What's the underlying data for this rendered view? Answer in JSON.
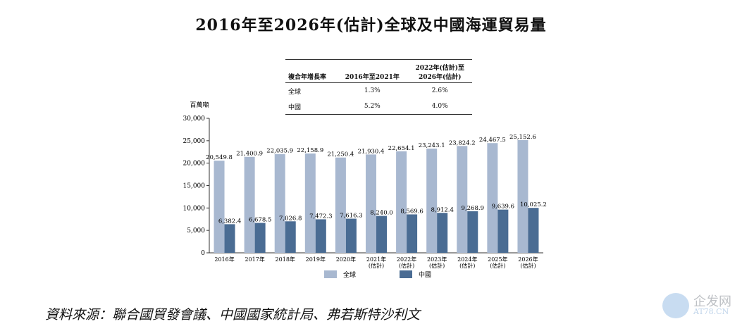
{
  "title": "2016年至2026年(估計)全球及中國海運貿易量",
  "cagr_table": {
    "headers": [
      "複合年增長率",
      "2016年至2021年",
      "2022年(估計)至\n2026年(估計)"
    ],
    "rows": [
      {
        "label": "全球",
        "v1": "1.3%",
        "v2": "2.6%"
      },
      {
        "label": "中國",
        "v1": "5.2%",
        "v2": "4.0%"
      }
    ]
  },
  "chart_data": {
    "type": "bar",
    "title": "2016年至2026年(估計)全球及中國海運貿易量",
    "ylabel": "百萬噸",
    "ylim": [
      0,
      30000
    ],
    "yticks": [
      "0",
      "5,000",
      "10,000",
      "15,000",
      "20,000",
      "25,000",
      "30,000"
    ],
    "categories": [
      [
        "2016年"
      ],
      [
        "2017年"
      ],
      [
        "2018年"
      ],
      [
        "2019年"
      ],
      [
        "2020年"
      ],
      [
        "2021年",
        "(估計)"
      ],
      [
        "2022年",
        "(估計)"
      ],
      [
        "2023年",
        "(估計)"
      ],
      [
        "2024年",
        "(估計)"
      ],
      [
        "2025年",
        "(估計)"
      ],
      [
        "2026年",
        "(估計)"
      ]
    ],
    "series": [
      {
        "name": "全球",
        "color": "#a8b8d0",
        "values": [
          20549.8,
          21400.9,
          22035.9,
          22158.9,
          21250.4,
          21930.4,
          22654.1,
          23243.1,
          23824.2,
          24467.5,
          25152.6
        ],
        "labels": [
          "20,549.8",
          "21,400.9",
          "22,035.9",
          "22,158.9",
          "21,250.4",
          "21,930.4",
          "22,654.1",
          "23,243.1",
          "23,824.2",
          "24,467.5",
          "25,152.6"
        ]
      },
      {
        "name": "中國",
        "color": "#4a6c93",
        "values": [
          6382.4,
          6678.5,
          7026.8,
          7472.3,
          7616.3,
          8240.0,
          8569.6,
          8912.4,
          9268.9,
          9639.6,
          10025.2
        ],
        "labels": [
          "6,382.4",
          "6,678.5",
          "7,026.8",
          "7,472.3",
          "7,616.3",
          "8,240.0",
          "8,569.6",
          "8,912.4",
          "9,268.9",
          "9,639.6",
          "10,025.2"
        ]
      }
    ],
    "legend": "bottom",
    "grid": false
  },
  "source": "資料來源：聯合國貿發會議、中國國家統計局、弗若斯特沙利文",
  "watermark": {
    "line1": "企发网",
    "line2": "AT78.CN"
  }
}
